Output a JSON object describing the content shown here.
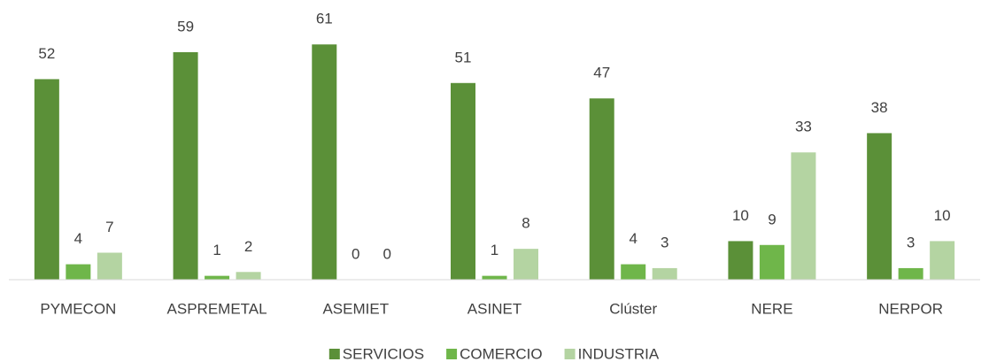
{
  "chart_data": {
    "type": "bar",
    "categories": [
      "PYMECON",
      "ASPREMETAL",
      "ASEMIET",
      "ASINET",
      "Clúster",
      "NERE",
      "NERPOR"
    ],
    "series": [
      {
        "name": "SERVICIOS",
        "color": "#5b9038",
        "values": [
          52,
          59,
          61,
          51,
          47,
          10,
          38
        ]
      },
      {
        "name": "COMERCIO",
        "color": "#6fb64a",
        "values": [
          4,
          1,
          0,
          1,
          4,
          9,
          3
        ]
      },
      {
        "name": "INDUSTRIA",
        "color": "#b4d4a2",
        "values": [
          7,
          2,
          0,
          8,
          3,
          33,
          10
        ]
      }
    ],
    "ylim": [
      0,
      70
    ],
    "legend": "bottom"
  }
}
